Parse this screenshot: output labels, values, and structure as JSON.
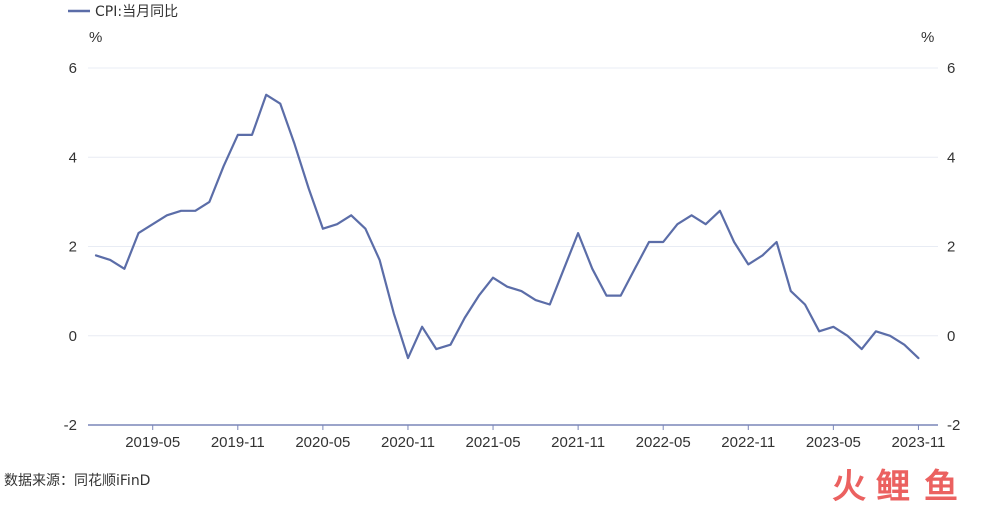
{
  "colors": {
    "series": "#5b6da8",
    "grid": "#e8ecf4",
    "axis": "#7a86b8",
    "text": "#333333"
  },
  "legend": {
    "label": "CPI:当月同比"
  },
  "source_text": "数据来源：同花顺iFinD",
  "watermark": {
    "text": "火鲤鱼",
    "colors": [
      "#e9504f",
      "#e9504f",
      "#e9504f"
    ]
  },
  "chart_data": {
    "type": "line",
    "title": "",
    "y_unit_left": "%",
    "y_unit_right": "%",
    "ylim": [
      -2,
      6
    ],
    "y_ticks": [
      "6",
      "4",
      "2",
      "0",
      "-2"
    ],
    "x_ticks": [
      "2019-05",
      "2019-11",
      "2020-05",
      "2020-11",
      "2021-05",
      "2021-11",
      "2022-05",
      "2022-11",
      "2023-05",
      "2023-11"
    ],
    "grid": true,
    "legend_position": "top-left",
    "series": [
      {
        "name": "CPI:当月同比",
        "x": [
          "2019-01",
          "2019-02",
          "2019-03",
          "2019-04",
          "2019-05",
          "2019-06",
          "2019-07",
          "2019-08",
          "2019-09",
          "2019-10",
          "2019-11",
          "2019-12",
          "2020-01",
          "2020-02",
          "2020-03",
          "2020-04",
          "2020-05",
          "2020-06",
          "2020-07",
          "2020-08",
          "2020-09",
          "2020-10",
          "2020-11",
          "2020-12",
          "2021-01",
          "2021-02",
          "2021-03",
          "2021-04",
          "2021-05",
          "2021-06",
          "2021-07",
          "2021-08",
          "2021-09",
          "2021-10",
          "2021-11",
          "2021-12",
          "2022-01",
          "2022-02",
          "2022-03",
          "2022-04",
          "2022-05",
          "2022-06",
          "2022-07",
          "2022-08",
          "2022-09",
          "2022-10",
          "2022-11",
          "2022-12",
          "2023-01",
          "2023-02",
          "2023-03",
          "2023-04",
          "2023-05",
          "2023-06",
          "2023-07",
          "2023-08",
          "2023-09",
          "2023-10",
          "2023-11"
        ],
        "values": [
          1.8,
          1.7,
          1.5,
          2.3,
          2.5,
          2.7,
          2.8,
          2.8,
          3.0,
          3.8,
          4.5,
          4.5,
          5.4,
          5.2,
          4.3,
          3.3,
          2.4,
          2.5,
          2.7,
          2.4,
          1.7,
          0.5,
          -0.5,
          0.2,
          -0.3,
          -0.2,
          0.4,
          0.9,
          1.3,
          1.1,
          1.0,
          0.8,
          0.7,
          1.5,
          2.3,
          1.5,
          0.9,
          0.9,
          1.5,
          2.1,
          2.1,
          2.5,
          2.7,
          2.5,
          2.8,
          2.1,
          1.6,
          1.8,
          2.1,
          1.0,
          0.7,
          0.1,
          0.2,
          0.0,
          -0.3,
          0.1,
          0.0,
          -0.2,
          -0.5
        ]
      }
    ]
  }
}
